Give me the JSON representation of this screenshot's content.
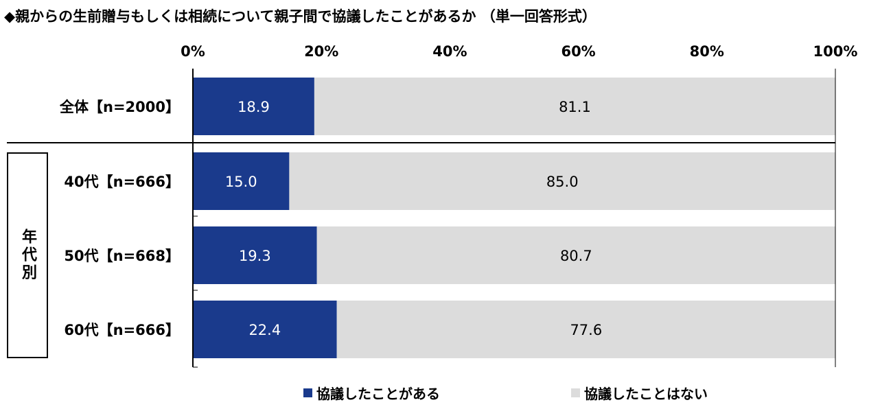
{
  "title": "◆親からの生前贈与もしくは相続について親子間で協議したことがあるか （単一回答形式）",
  "group_label": "年代別",
  "colors": {
    "series1": "#1a3a8c",
    "series2": "#dcdcdc",
    "axis": "#000000"
  },
  "chart_data": {
    "type": "bar",
    "orientation": "horizontal",
    "stacked": true,
    "categories": [
      "全体【n=2000】",
      "40代【n=666】",
      "50代【n=668】",
      "60代【n=666】"
    ],
    "series": [
      {
        "name": "協議したことがある",
        "values": [
          18.9,
          15.0,
          19.3,
          22.4
        ]
      },
      {
        "name": "協議したことはない",
        "values": [
          81.1,
          85.0,
          80.7,
          77.6
        ]
      }
    ],
    "value_labels": [
      [
        "18.9",
        "15.0",
        "19.3",
        "22.4"
      ],
      [
        "81.1",
        "85.0",
        "80.7",
        "77.6"
      ]
    ],
    "xticks": [
      "0%",
      "20%",
      "40%",
      "60%",
      "80%",
      "100%"
    ],
    "xlim": [
      0,
      100
    ],
    "grid": false,
    "legend": "bottom"
  }
}
